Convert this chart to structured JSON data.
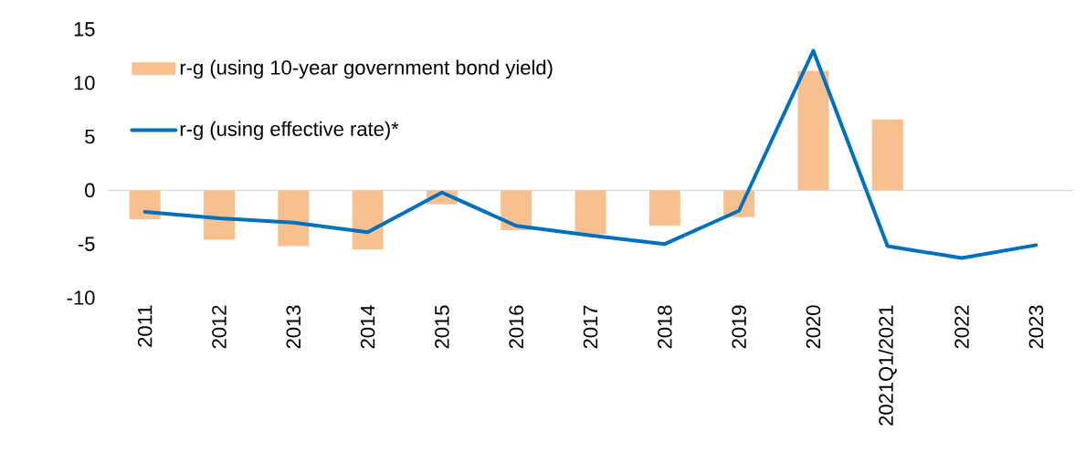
{
  "chart_data": {
    "type": "bar",
    "categories": [
      "2011",
      "2012",
      "2013",
      "2014",
      "2015",
      "2016",
      "2017",
      "2018",
      "2019",
      "2020",
      "2021Q1/2021",
      "2022",
      "2023"
    ],
    "series": [
      {
        "name": "r-g (using 10-year government bond yield)",
        "color": "#f9c08f",
        "values": [
          -2.7,
          -4.6,
          -5.2,
          -5.5,
          -1.3,
          -3.7,
          -4.1,
          -3.3,
          -2.5,
          11.1,
          6.6,
          null,
          null
        ]
      },
      {
        "name": "r-g (using effective rate)*",
        "type": "line",
        "color": "#0070c0",
        "values": [
          -2.0,
          -2.6,
          -3.0,
          -3.9,
          -0.2,
          -3.3,
          -4.2,
          -5.0,
          -1.9,
          13.0,
          -5.2,
          -6.3,
          -5.1
        ]
      }
    ],
    "ylim": [
      -10,
      15
    ],
    "yticks": [
      -10,
      -5,
      0,
      5,
      10,
      15
    ],
    "ref_lines": [
      {
        "axis": "y",
        "value": 0,
        "color": "#d9d9d9"
      }
    ],
    "legend": "top left"
  }
}
